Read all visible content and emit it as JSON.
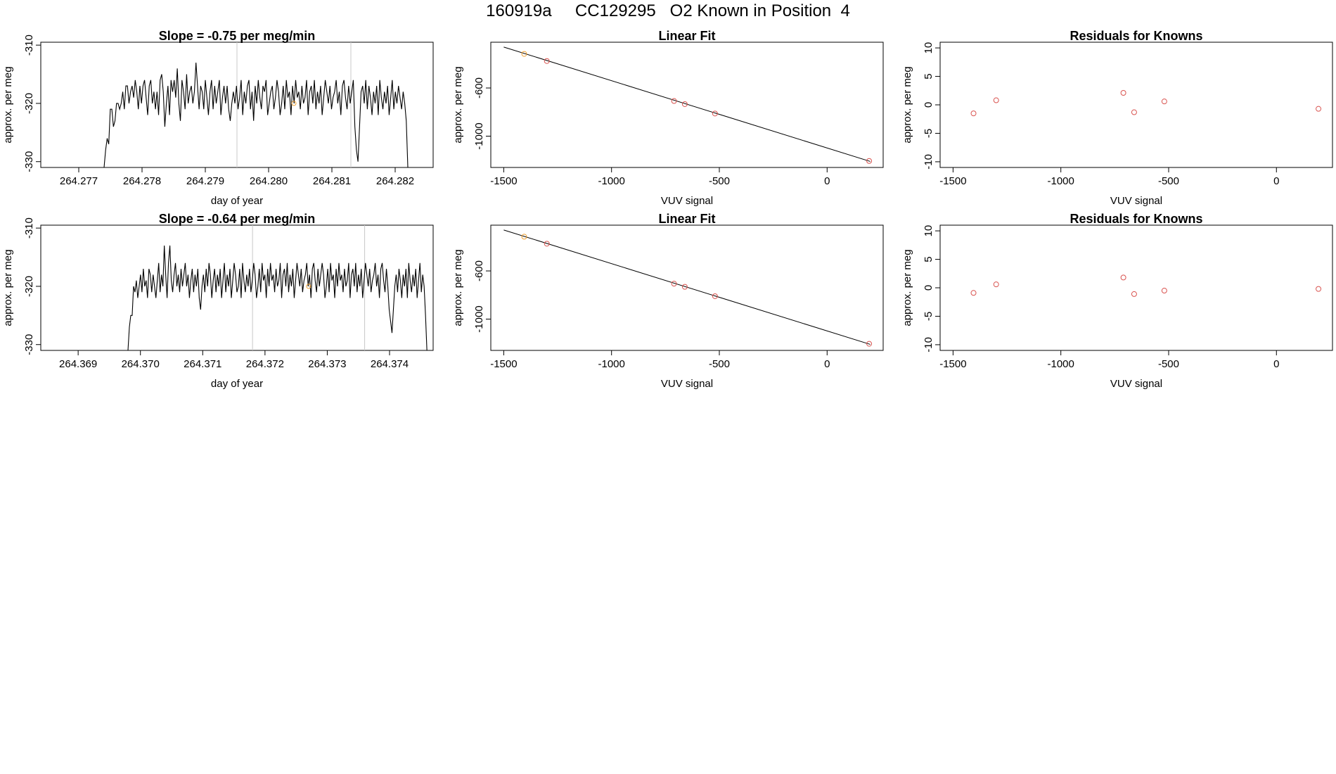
{
  "page_title": "160919a     CC129295   O2 Known in Position  4",
  "colors": {
    "line": "#000000",
    "marker_red": "#d9534f",
    "marker_orange": "#f0a030",
    "vline": "#c8c8c8",
    "frame": "#000000"
  },
  "chart_data": [
    {
      "type": "line",
      "title": "Slope =  -0.75  per meg/min",
      "xlabel": "day of year",
      "ylabel": "approx. per meg",
      "xlim": [
        264.2764,
        264.2826
      ],
      "ylim": [
        -331,
        -309.5
      ],
      "xticks": [
        "264.277",
        "264.278",
        "264.279",
        "264.280",
        "264.281",
        "264.282"
      ],
      "yticks": [
        "-310",
        "-320",
        "-330"
      ],
      "vlines": [
        264.2795,
        264.2813
      ],
      "marker": {
        "x": 264.2804,
        "y": -320
      },
      "x_start": 264.2774,
      "x_end": 264.2822,
      "y": [
        -331,
        -328,
        -326,
        -327,
        -321,
        -321,
        -324,
        -323,
        -320,
        -320,
        -321,
        -320,
        -318,
        -321,
        -317,
        -317,
        -320,
        -318,
        -317,
        -319,
        -316,
        -318,
        -321,
        -317,
        -320,
        -317,
        -316,
        -319,
        -322,
        -317,
        -316,
        -320,
        -318,
        -321,
        -318,
        -322,
        -316,
        -315,
        -318,
        -324,
        -320,
        -317,
        -322,
        -316,
        -318,
        -316,
        -319,
        -314,
        -320,
        -323,
        -316,
        -318,
        -321,
        -315,
        -320,
        -318,
        -317,
        -320,
        -318,
        -313,
        -317,
        -321,
        -317,
        -318,
        -321,
        -316,
        -319,
        -322,
        -318,
        -316,
        -321,
        -317,
        -320,
        -318,
        -316,
        -322,
        -319,
        -317,
        -320,
        -317,
        -321,
        -323,
        -320,
        -318,
        -320,
        -317,
        -321,
        -319,
        -316,
        -322,
        -318,
        -320,
        -317,
        -316,
        -321,
        -318,
        -323,
        -317,
        -320,
        -316,
        -319,
        -321,
        -317,
        -318,
        -316,
        -322,
        -320,
        -318,
        -317,
        -321,
        -319,
        -316,
        -318,
        -322,
        -320,
        -317,
        -321,
        -316,
        -319,
        -318,
        -322,
        -317,
        -320,
        -316,
        -319,
        -318,
        -321,
        -317,
        -320,
        -319,
        -316,
        -322,
        -318,
        -317,
        -320,
        -316,
        -321,
        -318,
        -320,
        -317,
        -322,
        -319,
        -316,
        -318,
        -320,
        -317,
        -321,
        -319,
        -318,
        -316,
        -320,
        -318,
        -322,
        -317,
        -316,
        -319,
        -321,
        -317,
        -320,
        -318,
        -316,
        -324,
        -328,
        -330,
        -324,
        -318,
        -317,
        -320,
        -316,
        -321,
        -317,
        -319,
        -322,
        -318,
        -320,
        -317,
        -322,
        -316,
        -319,
        -321,
        -318,
        -320,
        -317,
        -322,
        -319,
        -316,
        -321,
        -318,
        -320,
        -317,
        -319,
        -321,
        -318,
        -320,
        -323,
        -331
      ]
    },
    {
      "type": "scatter",
      "title": "Linear Fit",
      "xlabel": "VUV signal",
      "ylabel": "approx. per meg",
      "xlim": [
        -1560,
        260
      ],
      "ylim": [
        -1260,
        -220
      ],
      "xticks": [
        "-1500",
        "-1000",
        "-500",
        "0"
      ],
      "yticks": [
        "-600",
        "-1000"
      ],
      "fit_line": {
        "x": [
          -1500,
          200
        ],
        "y": [
          -260,
          -1210
        ]
      },
      "points": [
        {
          "x": -1405,
          "y": -317,
          "color": "orange"
        },
        {
          "x": -1300,
          "y": -376,
          "color": "red"
        },
        {
          "x": -710,
          "y": -708,
          "color": "red"
        },
        {
          "x": -660,
          "y": -734,
          "color": "red"
        },
        {
          "x": -520,
          "y": -812,
          "color": "red"
        },
        {
          "x": 195,
          "y": -1206,
          "color": "red"
        }
      ]
    },
    {
      "type": "scatter",
      "title": "Residuals for Knowns",
      "xlabel": "VUV signal",
      "ylabel": "approx. per meg",
      "xlim": [
        -1560,
        260
      ],
      "ylim": [
        -11,
        11
      ],
      "xticks": [
        "-1500",
        "-1000",
        "-500",
        "0"
      ],
      "yticks": [
        "-10",
        "-5",
        "0",
        "5",
        "10"
      ],
      "points": [
        {
          "x": -1405,
          "y": -1.5
        },
        {
          "x": -1300,
          "y": 0.8
        },
        {
          "x": -710,
          "y": 2.1
        },
        {
          "x": -660,
          "y": -1.3
        },
        {
          "x": -520,
          "y": 0.6
        },
        {
          "x": 195,
          "y": -0.7
        }
      ]
    },
    {
      "type": "line",
      "title": "Slope =  -0.64  per meg/min",
      "xlabel": "day of year",
      "ylabel": "approx. per meg",
      "xlim": [
        264.3684,
        264.3747
      ],
      "ylim": [
        -331,
        -309.5
      ],
      "xticks": [
        "264.369",
        "264.370",
        "264.371",
        "264.372",
        "264.373",
        "264.374"
      ],
      "yticks": [
        "-310",
        "-320",
        "-330"
      ],
      "vlines": [
        264.3718,
        264.3736
      ],
      "marker": {
        "x": 264.3727,
        "y": -320
      },
      "x_start": 264.3698,
      "x_end": 264.3746,
      "y": [
        -331,
        -327,
        -325,
        -325,
        -320,
        -321,
        -319,
        -322,
        -320,
        -318,
        -321,
        -317,
        -320,
        -319,
        -322,
        -317,
        -318,
        -321,
        -318,
        -320,
        -322,
        -319,
        -316,
        -321,
        -318,
        -320,
        -313,
        -318,
        -322,
        -316,
        -313,
        -319,
        -321,
        -318,
        -316,
        -320,
        -318,
        -321,
        -317,
        -320,
        -318,
        -316,
        -320,
        -318,
        -322,
        -319,
        -317,
        -321,
        -318,
        -320,
        -317,
        -322,
        -324,
        -320,
        -318,
        -321,
        -317,
        -320,
        -316,
        -318,
        -322,
        -319,
        -317,
        -321,
        -318,
        -320,
        -317,
        -322,
        -319,
        -316,
        -321,
        -318,
        -320,
        -317,
        -322,
        -319,
        -316,
        -318,
        -321,
        -320,
        -317,
        -322,
        -316,
        -319,
        -321,
        -318,
        -320,
        -317,
        -321,
        -319,
        -316,
        -318,
        -322,
        -320,
        -317,
        -321,
        -316,
        -319,
        -318,
        -322,
        -317,
        -320,
        -316,
        -319,
        -318,
        -321,
        -317,
        -320,
        -319,
        -316,
        -322,
        -318,
        -317,
        -320,
        -316,
        -321,
        -318,
        -320,
        -317,
        -322,
        -319,
        -316,
        -318,
        -320,
        -317,
        -321,
        -319,
        -318,
        -316,
        -320,
        -318,
        -322,
        -317,
        -316,
        -319,
        -321,
        -317,
        -320,
        -318,
        -316,
        -318,
        -322,
        -320,
        -317,
        -321,
        -316,
        -319,
        -318,
        -322,
        -317,
        -320,
        -316,
        -319,
        -318,
        -321,
        -317,
        -320,
        -319,
        -316,
        -322,
        -318,
        -317,
        -320,
        -316,
        -321,
        -318,
        -320,
        -317,
        -322,
        -319,
        -316,
        -318,
        -320,
        -317,
        -321,
        -319,
        -318,
        -316,
        -320,
        -318,
        -322,
        -317,
        -316,
        -319,
        -321,
        -317,
        -320,
        -324,
        -326,
        -328,
        -324,
        -320,
        -318,
        -321,
        -317,
        -319,
        -322,
        -318,
        -320,
        -317,
        -322,
        -316,
        -319,
        -321,
        -318,
        -320,
        -317,
        -322,
        -319,
        -316,
        -321,
        -318,
        -320,
        -325,
        -331
      ]
    },
    {
      "type": "scatter",
      "title": "Linear Fit",
      "xlabel": "VUV signal",
      "ylabel": "approx. per meg",
      "xlim": [
        -1560,
        260
      ],
      "ylim": [
        -1260,
        -220
      ],
      "xticks": [
        "-1500",
        "-1000",
        "-500",
        "0"
      ],
      "yticks": [
        "-600",
        "-1000"
      ],
      "fit_line": {
        "x": [
          -1500,
          200
        ],
        "y": [
          -260,
          -1210
        ]
      },
      "points": [
        {
          "x": -1405,
          "y": -316,
          "color": "orange"
        },
        {
          "x": -1300,
          "y": -374,
          "color": "red"
        },
        {
          "x": -710,
          "y": -706,
          "color": "red"
        },
        {
          "x": -660,
          "y": -732,
          "color": "red"
        },
        {
          "x": -520,
          "y": -810,
          "color": "red"
        },
        {
          "x": 195,
          "y": -1205,
          "color": "red"
        }
      ]
    },
    {
      "type": "scatter",
      "title": "Residuals for Knowns",
      "xlabel": "VUV signal",
      "ylabel": "approx. per meg",
      "xlim": [
        -1560,
        260
      ],
      "ylim": [
        -11,
        11
      ],
      "xticks": [
        "-1500",
        "-1000",
        "-500",
        "0"
      ],
      "yticks": [
        "-10",
        "-5",
        "0",
        "5",
        "10"
      ],
      "points": [
        {
          "x": -1405,
          "y": -0.9
        },
        {
          "x": -1300,
          "y": 0.6
        },
        {
          "x": -710,
          "y": 1.8
        },
        {
          "x": -660,
          "y": -1.1
        },
        {
          "x": -520,
          "y": -0.5
        },
        {
          "x": 195,
          "y": -0.2
        }
      ]
    }
  ]
}
